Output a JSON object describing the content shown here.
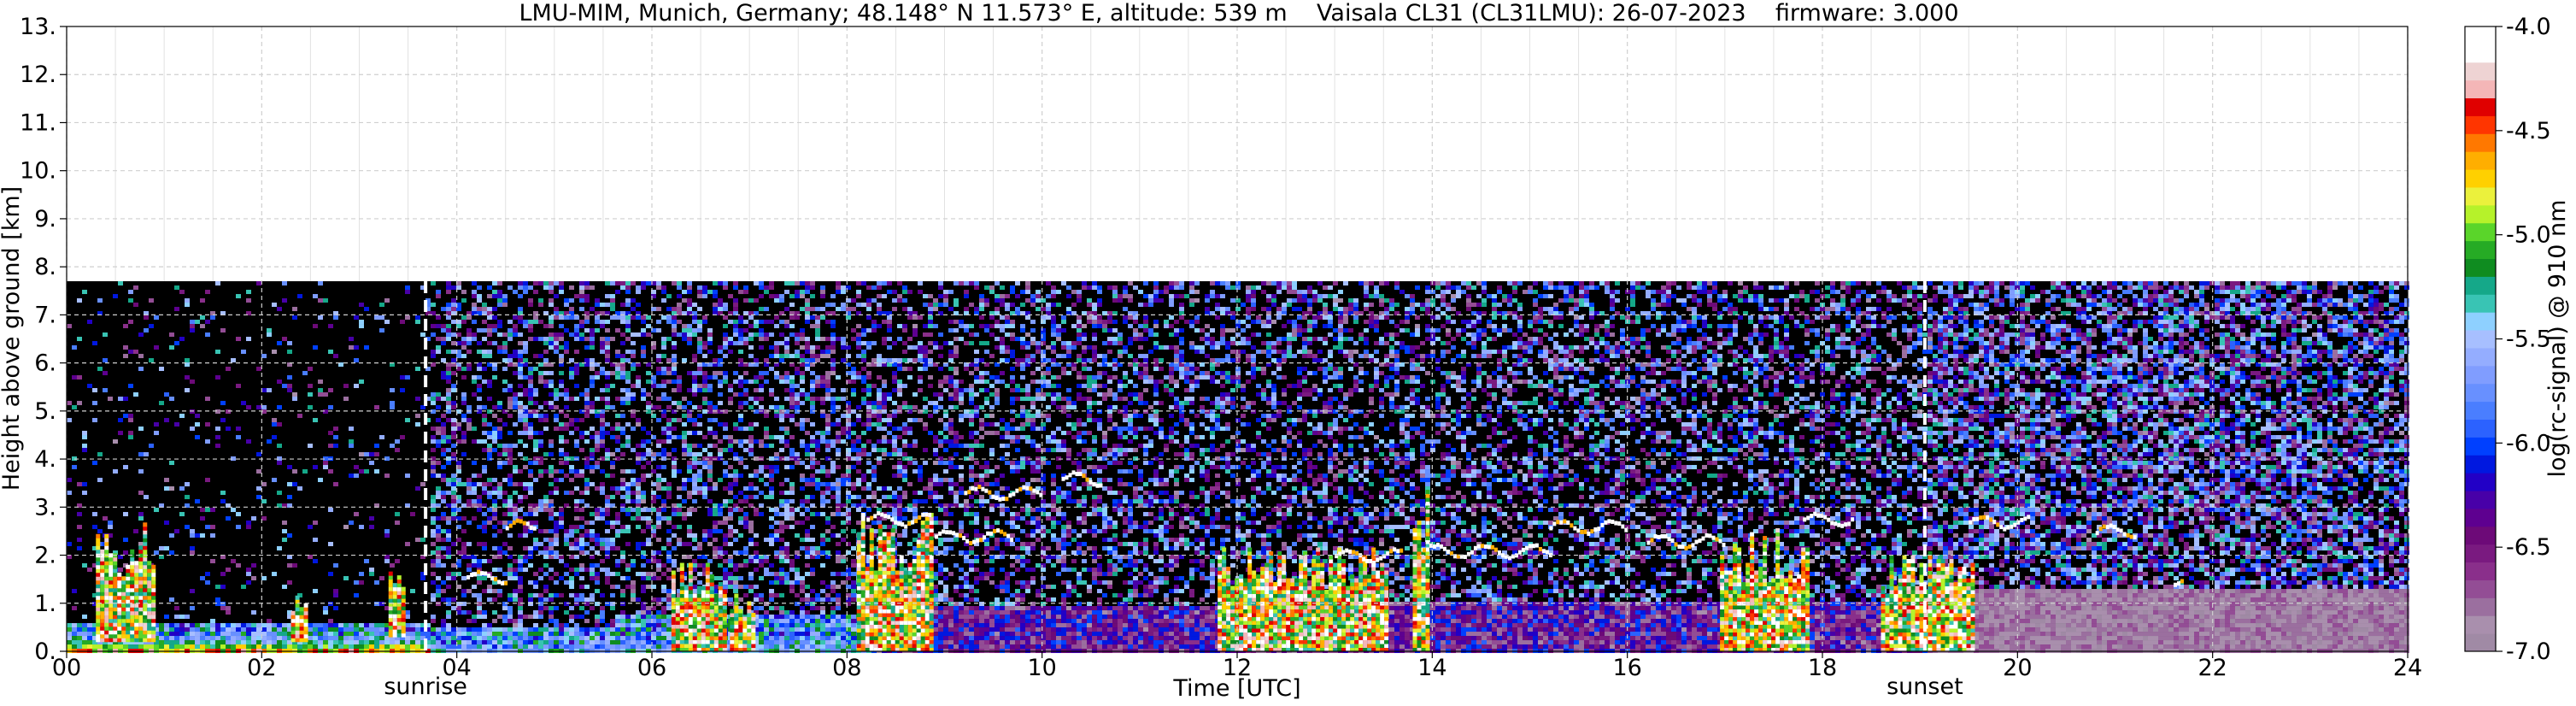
{
  "chart_data": {
    "type": "heatmap",
    "title": "LMU-MIM, Munich, Germany; 48.148° N 11.573° E, altitude: 539 m    Vaisala CL31 (CL31LMU): 26-07-2023    firmware: 3.000",
    "xlabel": "Time [UTC]",
    "ylabel": "Height above ground [km]",
    "xlim": [
      0,
      24
    ],
    "ylim": [
      0,
      13
    ],
    "x_ticks": [
      "00",
      "02",
      "04",
      "06",
      "08",
      "10",
      "12",
      "14",
      "16",
      "18",
      "20",
      "22",
      "24"
    ],
    "y_ticks": [
      "0.",
      "1.",
      "2.",
      "3.",
      "4.",
      "5.",
      "6.",
      "7.",
      "8.",
      "9.",
      "10.",
      "11.",
      "12.",
      "13."
    ],
    "grid": true,
    "annotations": [
      {
        "label": "sunrise",
        "x": 3.68
      },
      {
        "label": "sunset",
        "x": 19.05
      }
    ],
    "data_top_km": 7.7,
    "colorbar": {
      "label": "log(rc-signal) @ 910 nm",
      "range": [
        -7.0,
        -4.0
      ],
      "ticks": [
        "-7.0",
        "-6.5",
        "-6.0",
        "-5.5",
        "-5.0",
        "-4.5",
        "-4.0"
      ],
      "colors": [
        "#a08aa5",
        "#a98fad",
        "#9b6f9f",
        "#934d95",
        "#8a2f8b",
        "#7a1a80",
        "#6d0a78",
        "#5e0090",
        "#4800a8",
        "#2200c6",
        "#0018e0",
        "#0040ff",
        "#2c62ff",
        "#4a7eff",
        "#6890ff",
        "#809dff",
        "#94adff",
        "#a7bfff",
        "#8ed0ff",
        "#39c4b4",
        "#15a889",
        "#0f8c20",
        "#26ab25",
        "#5ad52a",
        "#b6f22a",
        "#ebf13c",
        "#ffd000",
        "#ffae00",
        "#ff7800",
        "#ff3500",
        "#e00000",
        "#f4b6b7",
        "#eed3d3",
        "#ffffff",
        "#ffffff"
      ]
    },
    "intensity_profiles": [
      {
        "x_start": 0.0,
        "x_end": 3.68,
        "y_top": 0.6,
        "max": 1.0
      },
      {
        "x_start": 3.68,
        "x_end": 5.6,
        "y_top": 0.5,
        "max": 0.55
      },
      {
        "x_start": 5.6,
        "x_end": 8.2,
        "y_top": 0.8,
        "max": 0.6
      },
      {
        "x_start": 8.2,
        "x_end": 11.8,
        "y_top": 1.0,
        "max": 0.3
      },
      {
        "x_start": 11.8,
        "x_end": 13.8,
        "y_top": 1.1,
        "max": 0.25
      },
      {
        "x_start": 13.8,
        "x_end": 17.0,
        "y_top": 1.1,
        "max": 0.3
      },
      {
        "x_start": 17.0,
        "x_end": 19.05,
        "y_top": 1.1,
        "max": 0.3
      },
      {
        "x_start": 19.05,
        "x_end": 24.0,
        "y_top": 1.3,
        "max": 0.15
      }
    ],
    "cloud_columns": [
      {
        "x_start": 6.2,
        "x_end": 6.75,
        "y_bot": 0.0,
        "y_top": 1.9
      },
      {
        "x_start": 6.8,
        "x_end": 7.05,
        "y_bot": 0.0,
        "y_top": 1.2
      },
      {
        "x_start": 8.1,
        "x_end": 8.85,
        "y_bot": 0.0,
        "y_top": 2.9
      },
      {
        "x_start": 11.8,
        "x_end": 13.55,
        "y_bot": 0.0,
        "y_top": 2.2
      },
      {
        "x_start": 13.8,
        "x_end": 13.95,
        "y_bot": 0.0,
        "y_top": 3.4
      },
      {
        "x_start": 16.95,
        "x_end": 17.85,
        "y_bot": 0.0,
        "y_top": 2.5
      },
      {
        "x_start": 18.6,
        "x_end": 19.55,
        "y_bot": 0.0,
        "y_top": 2.1
      },
      {
        "x_start": 0.3,
        "x_end": 0.9,
        "y_bot": 0.2,
        "y_top": 2.7
      },
      {
        "x_start": 2.3,
        "x_end": 2.45,
        "y_bot": 0.2,
        "y_top": 1.3
      },
      {
        "x_start": 3.3,
        "x_end": 3.45,
        "y_bot": 0.3,
        "y_top": 1.9
      }
    ],
    "cloud_layers": [
      {
        "x_start": 8.2,
        "x_end": 8.85,
        "y": 2.75
      },
      {
        "x_start": 4.1,
        "x_end": 4.5,
        "y": 1.55
      },
      {
        "x_start": 4.5,
        "x_end": 4.8,
        "y": 2.6
      },
      {
        "x_start": 8.9,
        "x_end": 9.7,
        "y": 2.4
      },
      {
        "x_start": 9.2,
        "x_end": 10.0,
        "y": 3.3
      },
      {
        "x_start": 10.2,
        "x_end": 10.6,
        "y": 3.6
      },
      {
        "x_start": 13.0,
        "x_end": 13.7,
        "y": 2.0
      },
      {
        "x_start": 13.9,
        "x_end": 15.2,
        "y": 2.1
      },
      {
        "x_start": 15.2,
        "x_end": 16.0,
        "y": 2.6
      },
      {
        "x_start": 16.2,
        "x_end": 17.0,
        "y": 2.3
      },
      {
        "x_start": 17.8,
        "x_end": 18.3,
        "y": 2.75
      },
      {
        "x_start": 19.5,
        "x_end": 20.1,
        "y": 2.7
      },
      {
        "x_start": 20.8,
        "x_end": 21.2,
        "y": 2.5
      },
      {
        "x_start": 21.6,
        "x_end": 21.7,
        "y": 1.4
      }
    ]
  }
}
